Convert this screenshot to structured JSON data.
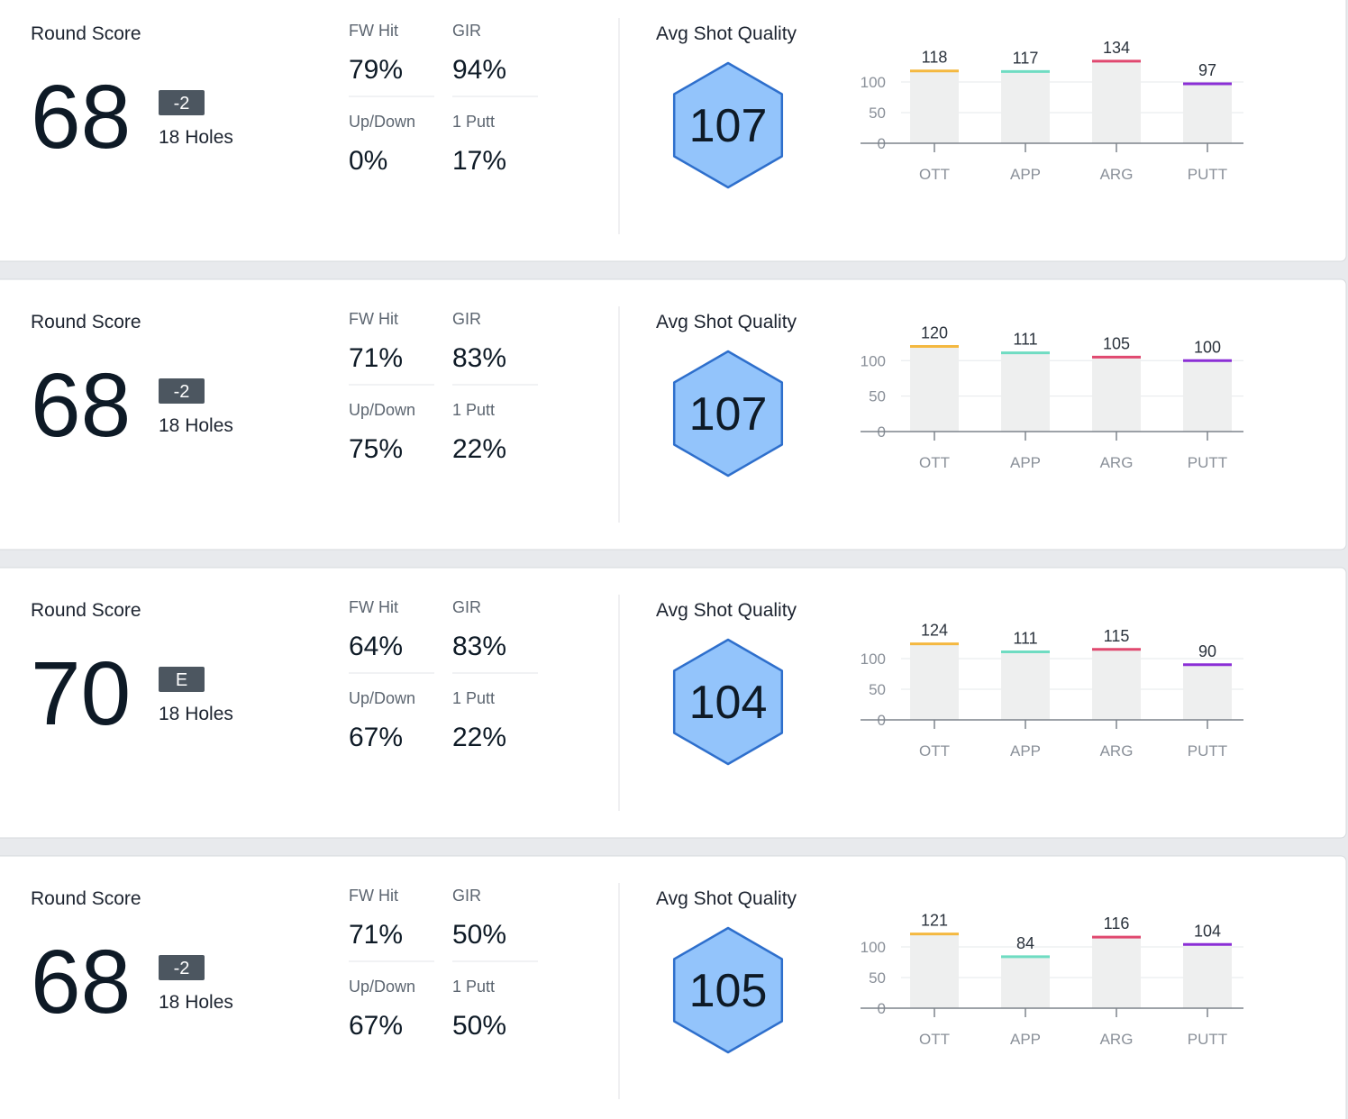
{
  "rounds": [
    {
      "score_label": "Round Score",
      "score": 68,
      "to_par": "-2",
      "holes": "18 Holes",
      "stats": [
        {
          "label": "FW Hit",
          "value": "79%"
        },
        {
          "label": "GIR",
          "value": "94%"
        },
        {
          "label": "Up/Down",
          "value": "0%"
        },
        {
          "label": "1 Putt",
          "value": "17%"
        }
      ],
      "quality_label": "Avg Shot Quality",
      "quality": 107,
      "chart": {
        "type": "bar",
        "categories": [
          "OTT",
          "APP",
          "ARG",
          "PUTT"
        ],
        "values": [
          118,
          117,
          134,
          97
        ],
        "colors": [
          "#f4b840",
          "#6fdcc2",
          "#e0486f",
          "#8b2fd6"
        ],
        "ylim": [
          0,
          147
        ],
        "yticks": [
          0,
          50,
          100
        ],
        "grid": true
      }
    },
    {
      "score_label": "Round Score",
      "score": 68,
      "to_par": "-2",
      "holes": "18 Holes",
      "stats": [
        {
          "label": "FW Hit",
          "value": "71%"
        },
        {
          "label": "GIR",
          "value": "83%"
        },
        {
          "label": "Up/Down",
          "value": "75%"
        },
        {
          "label": "1 Putt",
          "value": "22%"
        }
      ],
      "quality_label": "Avg Shot Quality",
      "quality": 107,
      "chart": {
        "type": "bar",
        "categories": [
          "OTT",
          "APP",
          "ARG",
          "PUTT"
        ],
        "values": [
          120,
          111,
          105,
          100
        ],
        "colors": [
          "#f4b840",
          "#6fdcc2",
          "#e0486f",
          "#8b2fd6"
        ],
        "ylim": [
          0,
          127
        ],
        "yticks": [
          0,
          50,
          100
        ],
        "grid": true
      }
    },
    {
      "score_label": "Round Score",
      "score": 70,
      "to_par": "E",
      "holes": "18 Holes",
      "stats": [
        {
          "label": "FW Hit",
          "value": "64%"
        },
        {
          "label": "GIR",
          "value": "83%"
        },
        {
          "label": "Up/Down",
          "value": "67%"
        },
        {
          "label": "1 Putt",
          "value": "22%"
        }
      ],
      "quality_label": "Avg Shot Quality",
      "quality": 104,
      "chart": {
        "type": "bar",
        "categories": [
          "OTT",
          "APP",
          "ARG",
          "PUTT"
        ],
        "values": [
          124,
          111,
          115,
          90
        ],
        "colors": [
          "#f4b840",
          "#6fdcc2",
          "#e0486f",
          "#8b2fd6"
        ],
        "ylim": [
          0,
          147
        ],
        "yticks": [
          0,
          50,
          100
        ],
        "grid": true
      }
    },
    {
      "score_label": "Round Score",
      "score": 68,
      "to_par": "-2",
      "holes": "18 Holes",
      "stats": [
        {
          "label": "FW Hit",
          "value": "71%"
        },
        {
          "label": "GIR",
          "value": "50%"
        },
        {
          "label": "Up/Down",
          "value": "67%"
        },
        {
          "label": "1 Putt",
          "value": "50%"
        }
      ],
      "quality_label": "Avg Shot Quality",
      "quality": 105,
      "chart": {
        "type": "bar",
        "categories": [
          "OTT",
          "APP",
          "ARG",
          "PUTT"
        ],
        "values": [
          121,
          84,
          116,
          104
        ],
        "colors": [
          "#f4b840",
          "#6fdcc2",
          "#e0486f",
          "#8b2fd6"
        ],
        "ylim": [
          0,
          147
        ],
        "yticks": [
          0,
          50,
          100
        ],
        "grid": true
      }
    }
  ]
}
